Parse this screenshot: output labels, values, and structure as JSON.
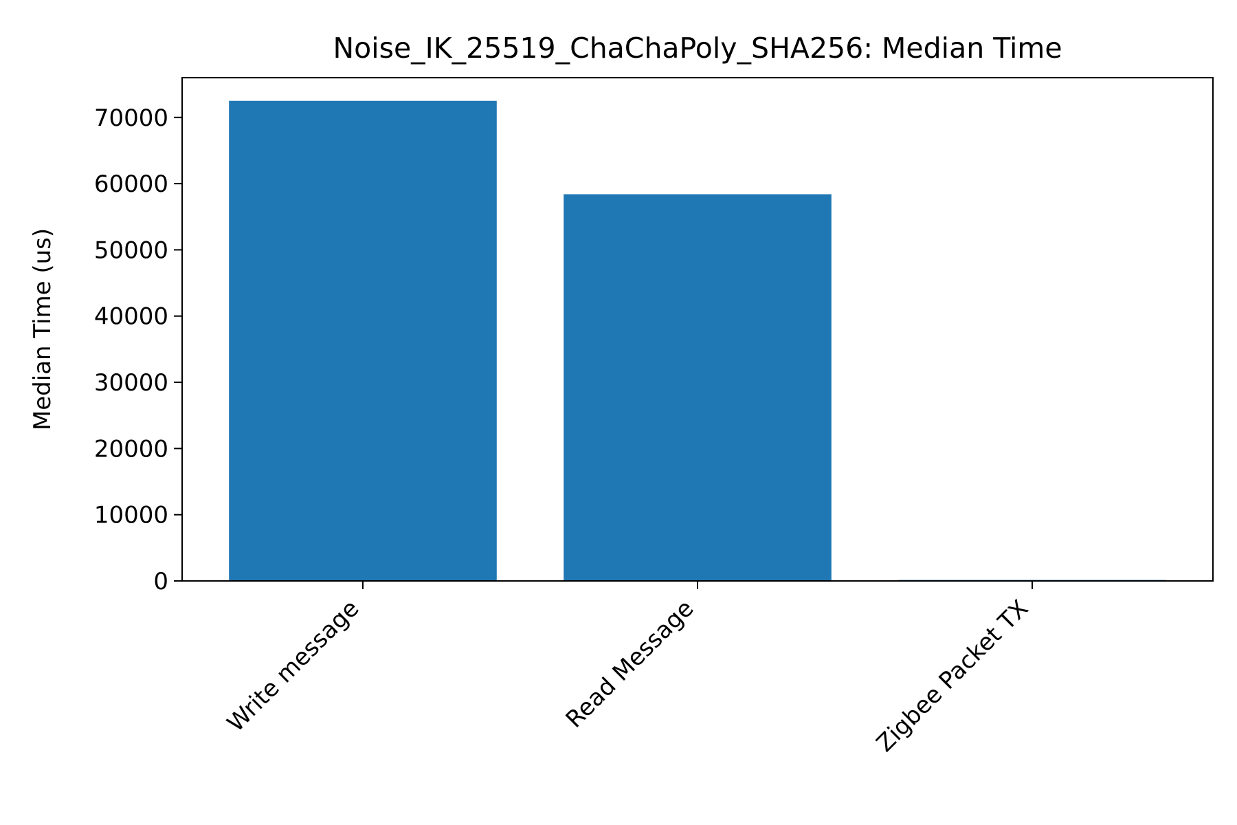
{
  "chart_data": {
    "type": "bar",
    "title": "Noise_IK_25519_ChaChaPoly_SHA256: Median Time",
    "xlabel": "",
    "ylabel": "Median Time (us)",
    "categories": [
      "Write message",
      "Read Message",
      "Zigbee Packet TX"
    ],
    "values": [
      72500,
      58400,
      150
    ],
    "ylim": [
      0,
      76000
    ],
    "yticks": [
      0,
      10000,
      20000,
      30000,
      40000,
      50000,
      60000,
      70000
    ],
    "ytick_labels": [
      "0",
      "10000",
      "20000",
      "30000",
      "40000",
      "50000",
      "60000",
      "70000"
    ],
    "bar_color": "#1f77b4",
    "grid": false,
    "legend": "none"
  }
}
